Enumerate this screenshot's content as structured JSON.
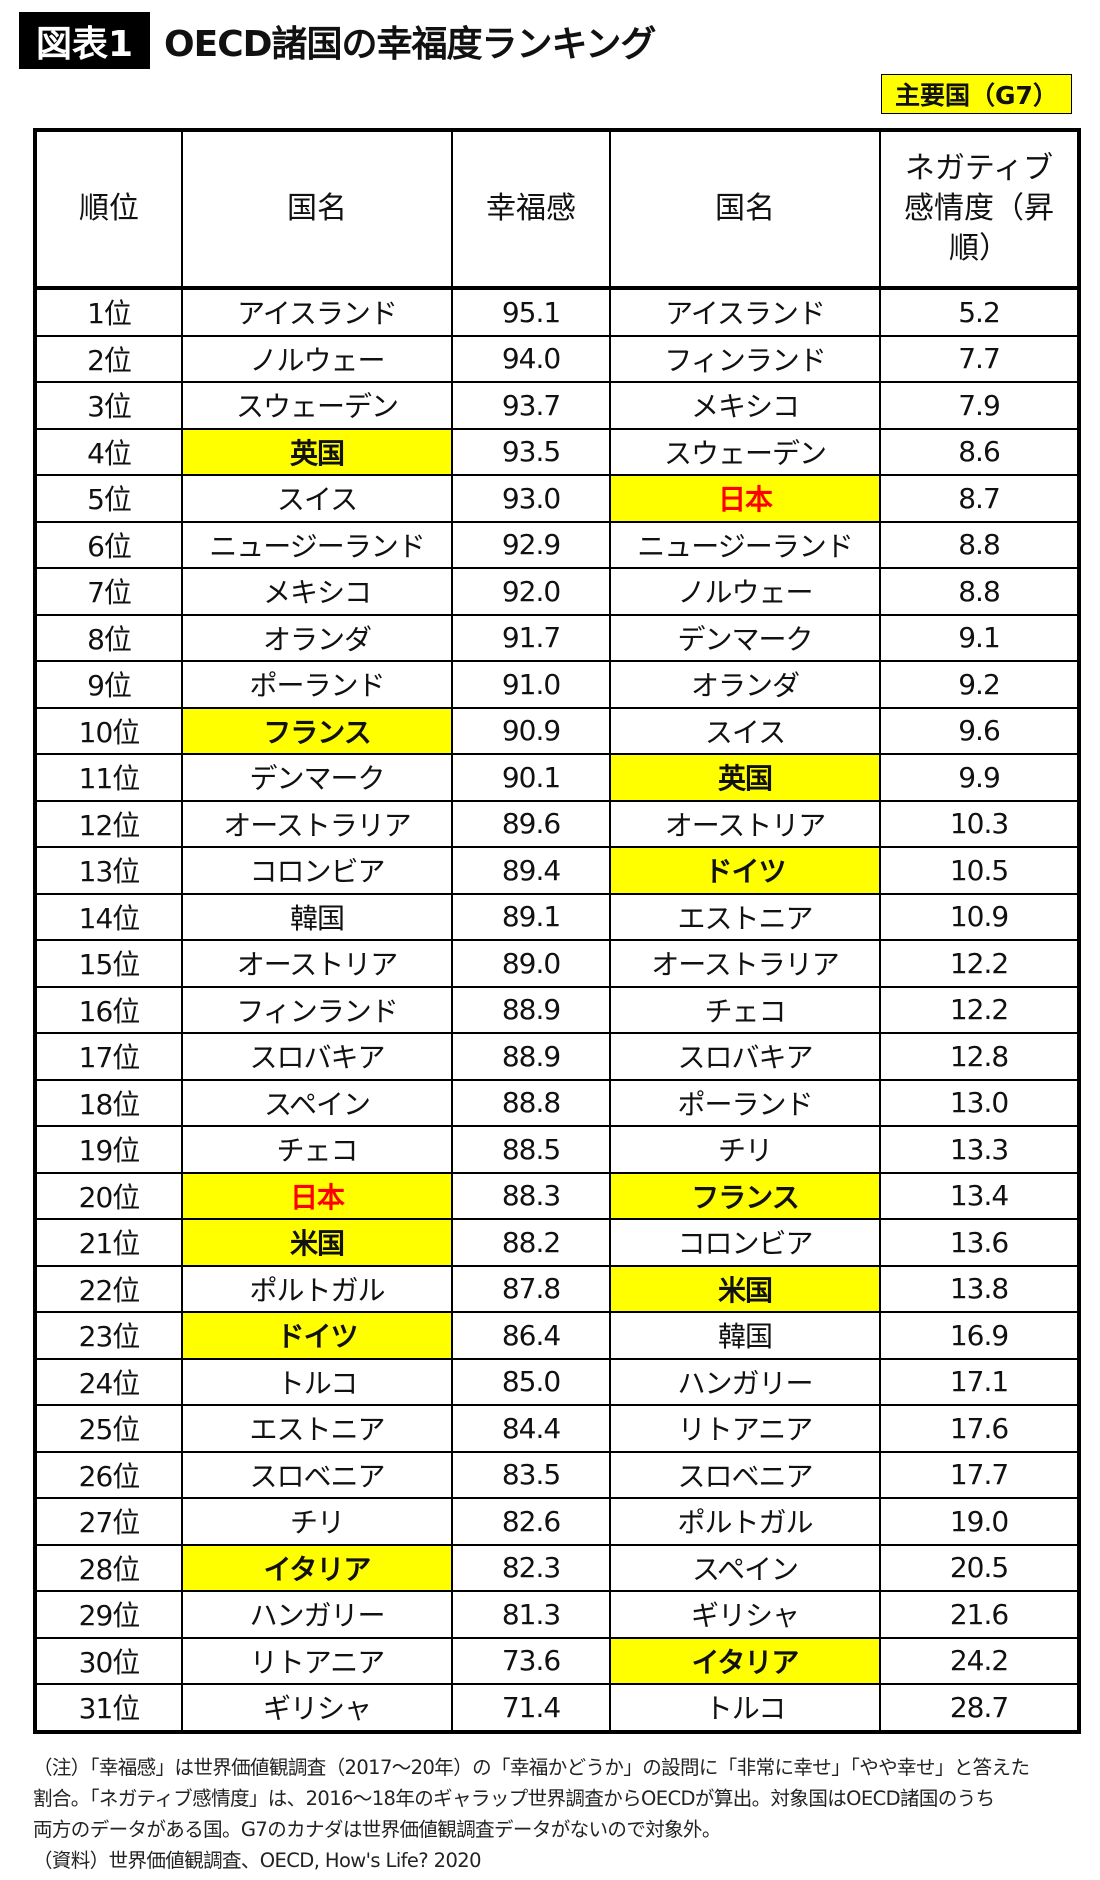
{
  "figure_label": "図表1",
  "title": "OECD諸国の幸福度ランキング",
  "legend_label": "主要国（G7）",
  "colors": {
    "highlight": "#ffff00",
    "japan_text": "#ff0000"
  },
  "headers": {
    "rank": "順位",
    "country_left": "国名",
    "happiness": "幸福感",
    "country_right": "国名",
    "negative": "ネガティブ感情度（昇順）"
  },
  "rows": [
    {
      "rank": "1位",
      "country_left": "アイスランド",
      "happiness": "95.1",
      "country_right": "アイスランド",
      "negative": "5.2"
    },
    {
      "rank": "2位",
      "country_left": "ノルウェー",
      "happiness": "94.0",
      "country_right": "フィンランド",
      "negative": "7.7"
    },
    {
      "rank": "3位",
      "country_left": "スウェーデン",
      "happiness": "93.7",
      "country_right": "メキシコ",
      "negative": "7.9"
    },
    {
      "rank": "4位",
      "country_left": "英国",
      "happiness": "93.5",
      "country_right": "スウェーデン",
      "negative": "8.6",
      "g7_left": true
    },
    {
      "rank": "5位",
      "country_left": "スイス",
      "happiness": "93.0",
      "country_right": "日本",
      "negative": "8.7",
      "g7_right": true,
      "japan_right": true
    },
    {
      "rank": "6位",
      "country_left": "ニュージーランド",
      "happiness": "92.9",
      "country_right": "ニュージーランド",
      "negative": "8.8"
    },
    {
      "rank": "7位",
      "country_left": "メキシコ",
      "happiness": "92.0",
      "country_right": "ノルウェー",
      "negative": "8.8"
    },
    {
      "rank": "8位",
      "country_left": "オランダ",
      "happiness": "91.7",
      "country_right": "デンマーク",
      "negative": "9.1"
    },
    {
      "rank": "9位",
      "country_left": "ポーランド",
      "happiness": "91.0",
      "country_right": "オランダ",
      "negative": "9.2"
    },
    {
      "rank": "10位",
      "country_left": "フランス",
      "happiness": "90.9",
      "country_right": "スイス",
      "negative": "9.6",
      "g7_left": true
    },
    {
      "rank": "11位",
      "country_left": "デンマーク",
      "happiness": "90.1",
      "country_right": "英国",
      "negative": "9.9",
      "g7_right": true
    },
    {
      "rank": "12位",
      "country_left": "オーストラリア",
      "happiness": "89.6",
      "country_right": "オーストリア",
      "negative": "10.3"
    },
    {
      "rank": "13位",
      "country_left": "コロンビア",
      "happiness": "89.4",
      "country_right": "ドイツ",
      "negative": "10.5",
      "g7_right": true
    },
    {
      "rank": "14位",
      "country_left": "韓国",
      "happiness": "89.1",
      "country_right": "エストニア",
      "negative": "10.9"
    },
    {
      "rank": "15位",
      "country_left": "オーストリア",
      "happiness": "89.0",
      "country_right": "オーストラリア",
      "negative": "12.2"
    },
    {
      "rank": "16位",
      "country_left": "フィンランド",
      "happiness": "88.9",
      "country_right": "チェコ",
      "negative": "12.2"
    },
    {
      "rank": "17位",
      "country_left": "スロバキア",
      "happiness": "88.9",
      "country_right": "スロバキア",
      "negative": "12.8"
    },
    {
      "rank": "18位",
      "country_left": "スペイン",
      "happiness": "88.8",
      "country_right": "ポーランド",
      "negative": "13.0"
    },
    {
      "rank": "19位",
      "country_left": "チェコ",
      "happiness": "88.5",
      "country_right": "チリ",
      "negative": "13.3"
    },
    {
      "rank": "20位",
      "country_left": "日本",
      "happiness": "88.3",
      "country_right": "フランス",
      "negative": "13.4",
      "g7_left": true,
      "japan_left": true,
      "g7_right": true
    },
    {
      "rank": "21位",
      "country_left": "米国",
      "happiness": "88.2",
      "country_right": "コロンビア",
      "negative": "13.6",
      "g7_left": true
    },
    {
      "rank": "22位",
      "country_left": "ポルトガル",
      "happiness": "87.8",
      "country_right": "米国",
      "negative": "13.8",
      "g7_right": true
    },
    {
      "rank": "23位",
      "country_left": "ドイツ",
      "happiness": "86.4",
      "country_right": "韓国",
      "negative": "16.9",
      "g7_left": true
    },
    {
      "rank": "24位",
      "country_left": "トルコ",
      "happiness": "85.0",
      "country_right": "ハンガリー",
      "negative": "17.1"
    },
    {
      "rank": "25位",
      "country_left": "エストニア",
      "happiness": "84.4",
      "country_right": "リトアニア",
      "negative": "17.6"
    },
    {
      "rank": "26位",
      "country_left": "スロベニア",
      "happiness": "83.5",
      "country_right": "スロベニア",
      "negative": "17.7"
    },
    {
      "rank": "27位",
      "country_left": "チリ",
      "happiness": "82.6",
      "country_right": "ポルトガル",
      "negative": "19.0"
    },
    {
      "rank": "28位",
      "country_left": "イタリア",
      "happiness": "82.3",
      "country_right": "スペイン",
      "negative": "20.5",
      "g7_left": true
    },
    {
      "rank": "29位",
      "country_left": "ハンガリー",
      "happiness": "81.3",
      "country_right": "ギリシャ",
      "negative": "21.6"
    },
    {
      "rank": "30位",
      "country_left": "リトアニア",
      "happiness": "73.6",
      "country_right": "イタリア",
      "negative": "24.2",
      "g7_right": true
    },
    {
      "rank": "31位",
      "country_left": "ギリシャ",
      "happiness": "71.4",
      "country_right": "トルコ",
      "negative": "28.7"
    }
  ],
  "notes": [
    "（注）「幸福感」は世界価値観調査（2017〜20年）の「幸福かどうか」の設問に「非常に幸せ」「やや幸せ」と答えた",
    "割合。「ネガティブ感情度」は、2016〜18年のギャラップ世界調査からOECDが算出。対象国はOECD諸国のうち",
    "両方のデータがある国。G7のカナダは世界価値観調査データがないので対象外。",
    "（資料）世界価値観調査、OECD, How's Life? 2020"
  ]
}
